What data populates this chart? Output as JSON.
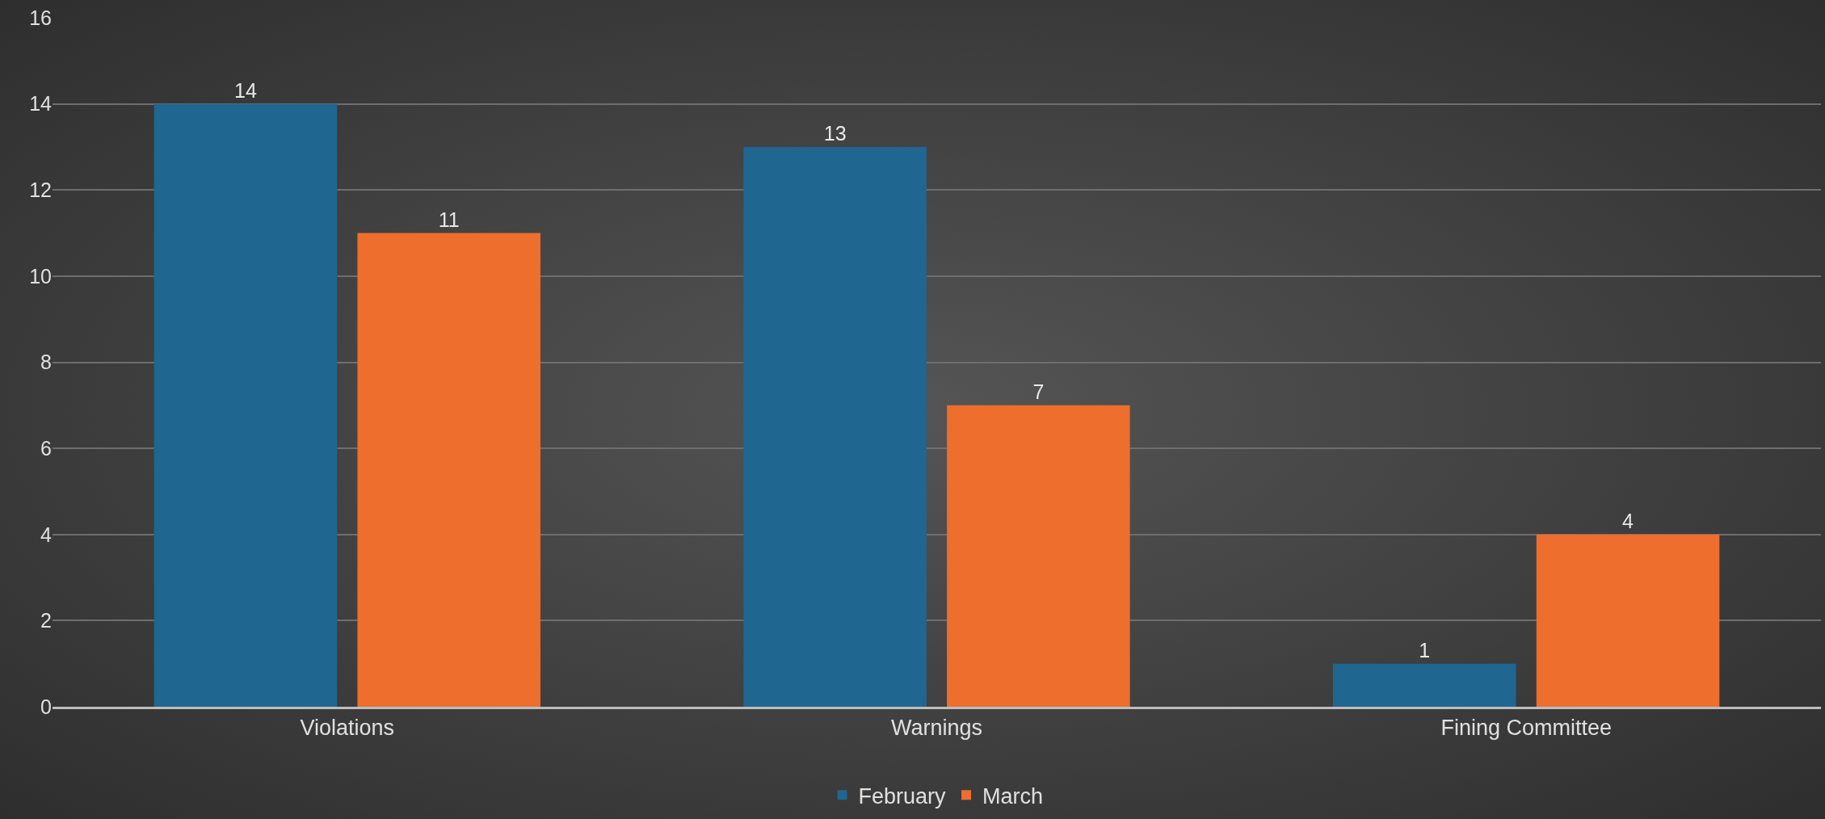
{
  "chart_data": {
    "type": "bar",
    "categories": [
      "Violations",
      "Warnings",
      "Fining Committee"
    ],
    "series": [
      {
        "name": "February",
        "color": "#1f6690",
        "values": [
          14,
          13,
          1
        ]
      },
      {
        "name": "March",
        "color": "#ee6e2e",
        "values": [
          11,
          7,
          4
        ]
      }
    ],
    "ylim": [
      0,
      16
    ],
    "yticks": [
      0,
      2,
      4,
      6,
      8,
      10,
      12,
      14,
      16
    ],
    "grid": "y",
    "legend": "bottom",
    "data_labels": true
  }
}
